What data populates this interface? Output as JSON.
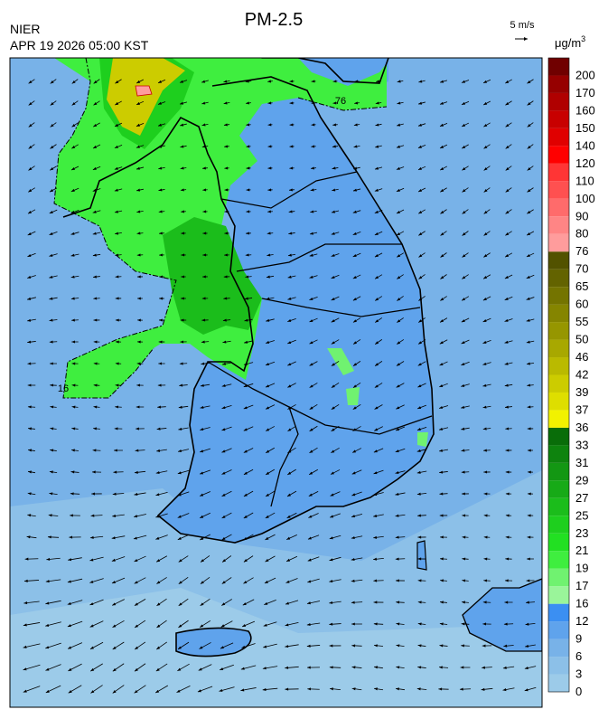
{
  "title": "PM-2.5",
  "agency": "NIER",
  "timestamp": "APR 19 2026 05:00 KST",
  "wind_scale_label": "5 m/s",
  "unit": "μg/m",
  "unit_superscript": "3",
  "contour_labels": [
    "76",
    "16"
  ],
  "colorbar": {
    "levels": [
      {
        "label": "0",
        "color": "#9ccbe9"
      },
      {
        "label": "3",
        "color": "#8cc0e8"
      },
      {
        "label": "6",
        "color": "#78b2e8"
      },
      {
        "label": "9",
        "color": "#5fa3ec"
      },
      {
        "label": "12",
        "color": "#3b8ff2"
      },
      {
        "label": "16",
        "color": "#9af59a"
      },
      {
        "label": "17",
        "color": "#70f270"
      },
      {
        "label": "19",
        "color": "#3fee3f"
      },
      {
        "label": "21",
        "color": "#22e022"
      },
      {
        "label": "23",
        "color": "#1ecf1e"
      },
      {
        "label": "25",
        "color": "#1bbd1b"
      },
      {
        "label": "27",
        "color": "#17aa17"
      },
      {
        "label": "29",
        "color": "#139713"
      },
      {
        "label": "31",
        "color": "#0e830e"
      },
      {
        "label": "33",
        "color": "#096d09"
      },
      {
        "label": "36",
        "color": "#f2f200"
      },
      {
        "label": "37",
        "color": "#dede00"
      },
      {
        "label": "39",
        "color": "#cccc00"
      },
      {
        "label": "42",
        "color": "#baba00"
      },
      {
        "label": "46",
        "color": "#a8a800"
      },
      {
        "label": "50",
        "color": "#969600"
      },
      {
        "label": "55",
        "color": "#858500"
      },
      {
        "label": "60",
        "color": "#747400"
      },
      {
        "label": "65",
        "color": "#636300"
      },
      {
        "label": "70",
        "color": "#525200"
      },
      {
        "label": "76",
        "color": "#ff9c9c"
      },
      {
        "label": "80",
        "color": "#ff8585"
      },
      {
        "label": "90",
        "color": "#ff6b6b"
      },
      {
        "label": "100",
        "color": "#ff5050"
      },
      {
        "label": "110",
        "color": "#ff3535"
      },
      {
        "label": "120",
        "color": "#ff0000"
      },
      {
        "label": "140",
        "color": "#e00000"
      },
      {
        "label": "150",
        "color": "#c80000"
      },
      {
        "label": "160",
        "color": "#b00000"
      },
      {
        "label": "170",
        "color": "#960000"
      },
      {
        "label": "200",
        "color": "#700000"
      }
    ]
  }
}
